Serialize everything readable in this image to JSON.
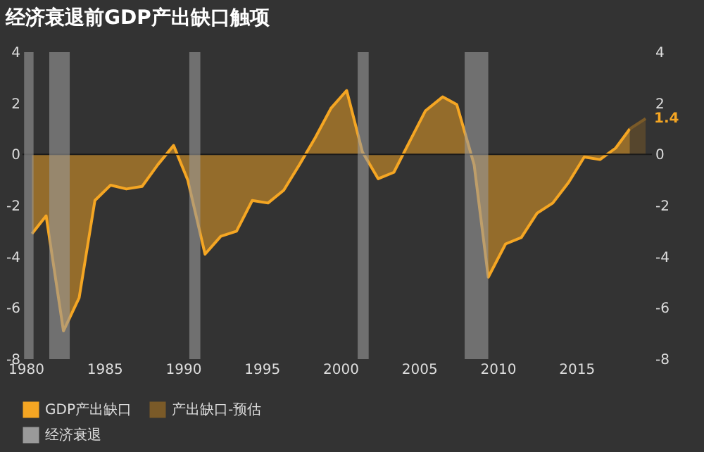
{
  "chart_data": {
    "type": "area",
    "title": "经济衰退前GDP产出缺口触项",
    "series": [
      {
        "name": "GDP产出缺口",
        "color": "#f5a623",
        "x": [
          1980.4,
          1981.3,
          1982.4,
          1983.4,
          1984.4,
          1985.4,
          1986.4,
          1987.4,
          1988.4,
          1989.4,
          1990.3,
          1991.4,
          1992.4,
          1993.4,
          1994.4,
          1995.4,
          1996.4,
          1997.4,
          1998.4,
          1999.4,
          2000.4,
          2001.4,
          2002.4,
          2003.4,
          2004.4,
          2005.4,
          2006.5,
          2007.4,
          2008.5,
          2009.4,
          2010.5,
          2011.5,
          2012.5,
          2013.5,
          2014.5,
          2015.5,
          2016.5,
          2017.5,
          2018.4
        ],
        "values": [
          -3.1,
          -2.4,
          -6.9,
          -5.6,
          -1.8,
          -1.2,
          -1.35,
          -1.25,
          -0.4,
          0.35,
          -1.0,
          -3.9,
          -3.2,
          -3.0,
          -1.8,
          -1.9,
          -1.4,
          -0.4,
          0.65,
          1.8,
          2.5,
          0.1,
          -0.95,
          -0.7,
          0.5,
          1.7,
          2.25,
          1.95,
          -0.4,
          -4.8,
          -3.5,
          -3.25,
          -2.3,
          -1.9,
          -1.1,
          -0.1,
          -0.2,
          0.25,
          1.0
        ]
      },
      {
        "name": "产出缺口-预估",
        "color": "#7a5a28",
        "x": [
          2018.4,
          2019.4
        ],
        "values": [
          1.0,
          1.4
        ],
        "value_labels": [
          null,
          "1.4"
        ]
      }
    ],
    "bands": [
      {
        "axis": "x",
        "from": 1979.9,
        "to": 1980.5,
        "label": "经济衰退",
        "color": "#9a9a9a"
      },
      {
        "axis": "x",
        "from": 1981.5,
        "to": 1982.8,
        "color": "#9a9a9a"
      },
      {
        "axis": "x",
        "from": 1990.4,
        "to": 1991.1,
        "color": "#9a9a9a"
      },
      {
        "axis": "x",
        "from": 2001.1,
        "to": 2001.8,
        "color": "#9a9a9a"
      },
      {
        "axis": "x",
        "from": 2007.9,
        "to": 2009.4,
        "color": "#9a9a9a"
      }
    ],
    "ref_lines": [
      {
        "axis": "y",
        "value": 0,
        "color": "#1a1a1a"
      }
    ],
    "xlim": [
      1979.8,
      2019.8
    ],
    "xticks": [
      1980,
      1985,
      1990,
      1995,
      2000,
      2005,
      2010,
      2015
    ],
    "ylim": [
      -8,
      4
    ],
    "yticks": [
      -8,
      -6,
      -4,
      -2,
      0,
      2,
      4
    ],
    "y2lim": [
      -8,
      4
    ],
    "y2ticks": [
      -8,
      -6,
      -4,
      -2,
      0,
      2,
      4
    ],
    "grid": false,
    "legend": "bottom"
  }
}
